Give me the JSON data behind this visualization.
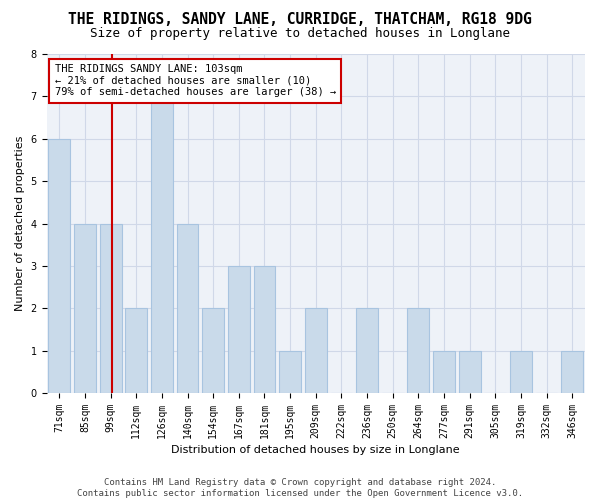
{
  "title": "THE RIDINGS, SANDY LANE, CURRIDGE, THATCHAM, RG18 9DG",
  "subtitle": "Size of property relative to detached houses in Longlane",
  "xlabel": "Distribution of detached houses by size in Longlane",
  "ylabel": "Number of detached properties",
  "categories": [
    "71sqm",
    "85sqm",
    "99sqm",
    "112sqm",
    "126sqm",
    "140sqm",
    "154sqm",
    "167sqm",
    "181sqm",
    "195sqm",
    "209sqm",
    "222sqm",
    "236sqm",
    "250sqm",
    "264sqm",
    "277sqm",
    "291sqm",
    "305sqm",
    "319sqm",
    "332sqm",
    "346sqm"
  ],
  "values": [
    6,
    4,
    4,
    2,
    7,
    4,
    2,
    3,
    3,
    1,
    2,
    0,
    2,
    0,
    2,
    1,
    1,
    0,
    1,
    0,
    1
  ],
  "bar_color": "#c9daea",
  "bar_edge_color": "#a8c4e0",
  "reference_line_index": 2,
  "reference_line_color": "#cc0000",
  "annotation_line1": "THE RIDINGS SANDY LANE: 103sqm",
  "annotation_line2": "← 21% of detached houses are smaller (10)",
  "annotation_line3": "79% of semi-detached houses are larger (38) →",
  "annotation_box_facecolor": "white",
  "annotation_box_edgecolor": "#cc0000",
  "ylim": [
    0,
    8
  ],
  "yticks": [
    0,
    1,
    2,
    3,
    4,
    5,
    6,
    7,
    8
  ],
  "grid_color": "#d0d8e8",
  "plot_bg_color": "#eef2f8",
  "footer_line1": "Contains HM Land Registry data © Crown copyright and database right 2024.",
  "footer_line2": "Contains public sector information licensed under the Open Government Licence v3.0.",
  "title_fontsize": 10.5,
  "subtitle_fontsize": 9,
  "axis_label_fontsize": 8,
  "tick_fontsize": 7,
  "annotation_fontsize": 7.5,
  "footer_fontsize": 6.5
}
